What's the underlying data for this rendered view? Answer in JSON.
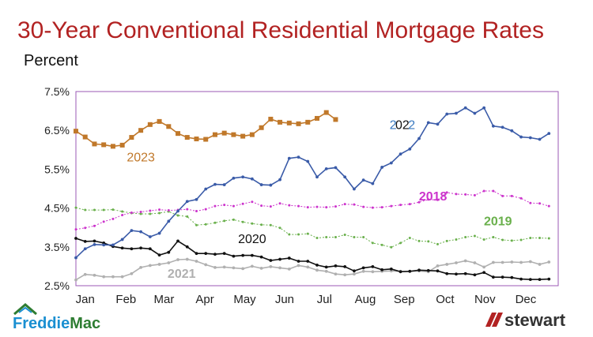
{
  "title": "30-Year Conventional Residential Mortgage Rates",
  "chart_data": {
    "type": "line",
    "title": "30-Year Conventional Residential Mortgage Rates",
    "ylabel": "Percent",
    "ylim": [
      2.5,
      7.5
    ],
    "yticks": [
      "7.5%",
      "6.5%",
      "5.5%",
      "4.5%",
      "3.5%",
      "2.5%"
    ],
    "ytick_values": [
      7.5,
      6.5,
      5.5,
      4.5,
      3.5,
      2.5
    ],
    "xlim": [
      1,
      53
    ],
    "months": [
      "Jan",
      "Feb",
      "Mar",
      "Apr",
      "May",
      "Jun",
      "Jul",
      "Aug",
      "Sep",
      "Oct",
      "Nov",
      "Dec"
    ],
    "month_week": [
      2,
      6.4,
      10.5,
      14.9,
      19.2,
      23.5,
      27.8,
      32.2,
      36.4,
      40.8,
      45.1,
      49.5
    ],
    "grid": false,
    "series": [
      {
        "name": "2023",
        "color": "#c0782a",
        "marker": "square",
        "labels": [
          {
            "text": "2023",
            "at": [
              8,
              5.7
            ]
          }
        ],
        "values": [
          6.48,
          6.33,
          6.15,
          6.13,
          6.09,
          6.12,
          6.32,
          6.5,
          6.65,
          6.73,
          6.6,
          6.42,
          6.32,
          6.28,
          6.27,
          6.39,
          6.43,
          6.39,
          6.35,
          6.39,
          6.57,
          6.79,
          6.71,
          6.69,
          6.67,
          6.71,
          6.81,
          6.96,
          6.78
        ]
      },
      {
        "name": "2022",
        "color": "#3a5ba8",
        "marker": "dot",
        "labels": [
          {
            "text": "2",
            "at": [
              35.2,
              6.53
            ],
            "color": "#3a7ac0"
          },
          {
            "text": "02",
            "at": [
              36.2,
              6.53
            ],
            "color": "#111111"
          },
          {
            "text": "2",
            "at": [
              37.2,
              6.53
            ],
            "color": "#3a7ac0"
          }
        ],
        "values": [
          3.22,
          3.45,
          3.56,
          3.55,
          3.55,
          3.69,
          3.92,
          3.89,
          3.76,
          3.85,
          4.16,
          4.42,
          4.67,
          4.72,
          4.99,
          5.11,
          5.1,
          5.27,
          5.3,
          5.25,
          5.1,
          5.09,
          5.23,
          5.78,
          5.81,
          5.7,
          5.3,
          5.51,
          5.54,
          5.3,
          4.99,
          5.22,
          5.13,
          5.55,
          5.66,
          5.89,
          6.02,
          6.29,
          6.7,
          6.66,
          6.92,
          6.94,
          7.08,
          6.94,
          7.08,
          6.61,
          6.58,
          6.49,
          6.33,
          6.31,
          6.27,
          6.42
        ]
      },
      {
        "name": "2018",
        "color": "#cc33cc",
        "marker": "dot",
        "labels": [
          {
            "text": "2018",
            "at": [
              39.5,
              4.7
            ],
            "color": "#cc33cc"
          }
        ],
        "values": [
          3.95,
          3.99,
          4.04,
          4.15,
          4.22,
          4.32,
          4.38,
          4.4,
          4.43,
          4.46,
          4.44,
          4.45,
          4.47,
          4.42,
          4.47,
          4.55,
          4.58,
          4.55,
          4.61,
          4.66,
          4.56,
          4.54,
          4.62,
          4.57,
          4.55,
          4.52,
          4.53,
          4.52,
          4.54,
          4.6,
          4.59,
          4.53,
          4.51,
          4.52,
          4.55,
          4.58,
          4.6,
          4.65,
          4.72,
          4.71,
          4.9,
          4.86,
          4.85,
          4.83,
          4.94,
          4.94,
          4.81,
          4.81,
          4.75,
          4.63,
          4.62,
          4.55
        ]
      },
      {
        "name": "2019",
        "color": "#6ab04c",
        "marker": "dot",
        "labels": [
          {
            "text": "2019",
            "at": [
              46.5,
              4.05
            ],
            "color": "#6ab04c"
          }
        ],
        "values": [
          4.51,
          4.45,
          4.45,
          4.45,
          4.46,
          4.41,
          4.37,
          4.35,
          4.35,
          4.37,
          4.41,
          4.31,
          4.28,
          4.06,
          4.08,
          4.12,
          4.17,
          4.2,
          4.14,
          4.1,
          4.07,
          4.06,
          3.99,
          3.82,
          3.82,
          3.84,
          3.73,
          3.75,
          3.75,
          3.81,
          3.75,
          3.75,
          3.6,
          3.55,
          3.49,
          3.6,
          3.73,
          3.65,
          3.64,
          3.57,
          3.65,
          3.69,
          3.75,
          3.78,
          3.69,
          3.75,
          3.68,
          3.66,
          3.68,
          3.73,
          3.73,
          3.72
        ]
      },
      {
        "name": "2020",
        "color": "#111111",
        "marker": "dot",
        "labels": [
          {
            "text": "2020",
            "at": [
              20,
              3.6
            ],
            "color": "#111111"
          }
        ],
        "values": [
          3.72,
          3.64,
          3.65,
          3.6,
          3.51,
          3.47,
          3.45,
          3.47,
          3.45,
          3.29,
          3.36,
          3.65,
          3.5,
          3.33,
          3.33,
          3.31,
          3.33,
          3.26,
          3.28,
          3.28,
          3.24,
          3.15,
          3.18,
          3.21,
          3.13,
          3.13,
          3.03,
          2.98,
          3.01,
          2.99,
          2.88,
          2.96,
          2.99,
          2.91,
          2.93,
          2.86,
          2.87,
          2.9,
          2.89,
          2.88,
          2.81,
          2.8,
          2.81,
          2.78,
          2.84,
          2.72,
          2.72,
          2.71,
          2.67,
          2.66,
          2.66,
          2.67
        ]
      },
      {
        "name": "2021",
        "color": "#b0b0b0",
        "marker": "dot",
        "labels": [
          {
            "text": "2021",
            "at": [
              12.4,
              2.7
            ],
            "color": "#b0b0b0"
          }
        ],
        "values": [
          2.65,
          2.79,
          2.77,
          2.73,
          2.73,
          2.73,
          2.81,
          2.97,
          3.02,
          3.05,
          3.09,
          3.17,
          3.18,
          3.13,
          3.04,
          2.97,
          2.98,
          2.96,
          2.94,
          3.0,
          2.95,
          2.99,
          2.96,
          2.93,
          3.02,
          2.98,
          2.9,
          2.87,
          2.8,
          2.78,
          2.8,
          2.87,
          2.86,
          2.87,
          2.88,
          2.87,
          2.87,
          2.88,
          2.86,
          3.01,
          3.05,
          3.09,
          3.14,
          3.09,
          2.98,
          3.1,
          3.1,
          3.11,
          3.1,
          3.12,
          3.05,
          3.11
        ]
      }
    ]
  },
  "logos": {
    "left": {
      "text": "Freddie Mac",
      "part1": "Freddie",
      "part2": "Mac",
      "color1": "#1a8fd1",
      "color2": "#2e7d32"
    },
    "right": {
      "text": "stewart",
      "color": "#333333",
      "mark_color": "#b22222"
    }
  }
}
